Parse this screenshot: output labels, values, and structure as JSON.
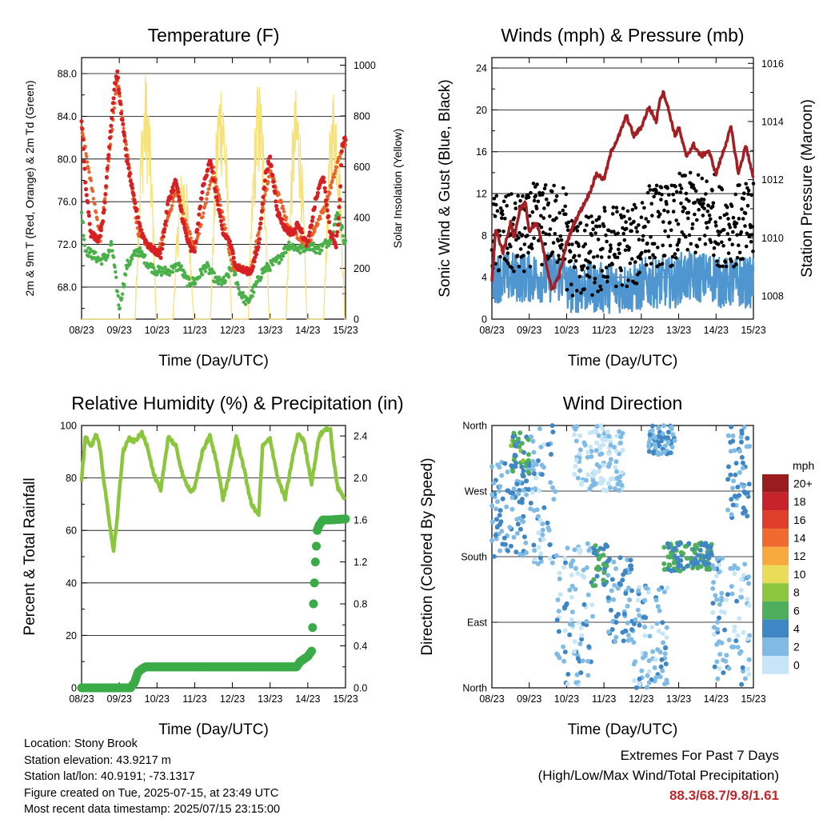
{
  "info": {
    "location": "Location: Stony Brook",
    "elevation": "Station elevation: 43.9217 m",
    "latlon": "Station lat/lon: 40.9191; -73.1317",
    "created": "Figure created on Tue, 2025-07-15, at 23:49 UTC",
    "timestamp": "Most recent data timestamp: 2025/07/15 23:15:00"
  },
  "extremes": {
    "title": "Extremes For Past 7 Days",
    "subtitle": "(High/Low/Max Wind/Total Precipitation)",
    "values": "88.3/68.7/9.8/1.61"
  },
  "colors": {
    "temp2m": "#d62024",
    "temp9m": "#e8652a",
    "dewpoint": "#4bb04a",
    "solar": "#f7e27a",
    "wind": "#4f96d0",
    "gust": "#000000",
    "pressure": "#a31f24",
    "rh": "#8cc63f",
    "precip": "#3aab46"
  },
  "chart_data": [
    {
      "type": "line",
      "title": "Temperature (F)",
      "xlabel": "Time (Day/UTC)",
      "ylabel": "2m & 9m T (Red, Orange) & 2m Td (Green)",
      "y2label": "Solar Insolation (Yellow)",
      "x_ticks": [
        "08/23",
        "09/23",
        "10/23",
        "11/23",
        "12/23",
        "13/23",
        "14/23",
        "15/23"
      ],
      "ylim": [
        65,
        89.5
      ],
      "y_ticks": [
        "68.0",
        "72.0",
        "76.0",
        "80.0",
        "84.0",
        "88.0"
      ],
      "y2lim": [
        0,
        1030
      ],
      "y2_ticks": [
        "0",
        "200",
        "400",
        "600",
        "800",
        "1000"
      ],
      "grid": "horizontal",
      "series": [
        {
          "key": "temp2m",
          "x": [
            0,
            0.1,
            0.25,
            0.45,
            0.6,
            0.7,
            0.8,
            0.88,
            0.95,
            1.0,
            1.2,
            1.4,
            1.6,
            1.75,
            1.9,
            2.1,
            2.3,
            2.5,
            2.7,
            2.8,
            2.9,
            3.0,
            3.2,
            3.4,
            3.6,
            3.75,
            3.9,
            4.1,
            4.3,
            4.5,
            4.7,
            4.8,
            4.9,
            5.0,
            5.2,
            5.4,
            5.6,
            5.75,
            5.9,
            6.0,
            6.2,
            6.4,
            6.6,
            6.75,
            6.85,
            6.9,
            7.0
          ],
          "y": [
            83.5,
            78,
            73,
            72.5,
            75,
            80,
            84,
            87,
            88,
            86,
            80,
            76,
            73,
            72,
            71.5,
            71,
            76,
            78,
            74,
            72.5,
            71.5,
            71.5,
            77,
            80,
            76,
            73,
            72.5,
            70,
            69.5,
            69.5,
            72,
            76,
            79,
            80,
            75,
            73.5,
            73,
            74,
            72.5,
            72,
            76,
            78.5,
            73,
            72,
            76,
            81,
            82
          ]
        },
        {
          "key": "temp9m",
          "x": [
            0,
            0.5,
            0.95,
            1.5,
            2.0,
            2.5,
            3.0,
            3.5,
            4.0,
            4.5,
            5.0,
            5.5,
            6.0,
            6.5,
            6.9,
            7.0
          ],
          "y": [
            83,
            72.5,
            87.5,
            73,
            71,
            77,
            71.5,
            79,
            70,
            69.5,
            79,
            73.5,
            72,
            76,
            81,
            81.5
          ]
        },
        {
          "key": "dewpoint",
          "x": [
            0,
            0.1,
            0.3,
            0.5,
            0.7,
            0.8,
            0.9,
            1.0,
            1.2,
            1.5,
            1.8,
            2.0,
            2.3,
            2.6,
            2.8,
            3.0,
            3.3,
            3.6,
            3.8,
            4.0,
            4.2,
            4.4,
            4.6,
            4.8,
            5.0,
            5.2,
            5.5,
            5.8,
            6.0,
            6.3,
            6.6,
            6.8,
            7.0
          ],
          "y": [
            75,
            71.5,
            71,
            70.5,
            71,
            72,
            69,
            66,
            70,
            71.5,
            70,
            69.5,
            69.5,
            70,
            68.5,
            68.5,
            70,
            68.5,
            68.5,
            70,
            67.5,
            66.5,
            68,
            69.5,
            70,
            70.5,
            72,
            71.5,
            72,
            71.5,
            72.5,
            75,
            72
          ]
        },
        {
          "key": "solar",
          "values_note": "daily peaks in W/m2",
          "days": [
            0,
            1,
            2,
            3,
            4,
            5,
            6
          ],
          "peak": [
            0,
            980,
            620,
            1000,
            960,
            920,
            950
          ]
        }
      ]
    },
    {
      "type": "scatter",
      "title": "Winds (mph) & Pressure (mb)",
      "xlabel": "Time (Day/UTC)",
      "ylabel": "Sonic Wind & Gust (Blue, Black)",
      "y2label": "Station Pressure (Maroon)",
      "x_ticks": [
        "08/23",
        "09/23",
        "10/23",
        "11/23",
        "12/23",
        "13/23",
        "14/23",
        "15/23"
      ],
      "ylim": [
        0,
        25
      ],
      "y_ticks": [
        "0",
        "4",
        "8",
        "12",
        "16",
        "20",
        "24"
      ],
      "y2lim": [
        1007.2,
        1016.2
      ],
      "y2_ticks": [
        "1008",
        "1010",
        "1012",
        "1014",
        "1016"
      ],
      "grid": "horizontal",
      "pressure": {
        "x": [
          0,
          0.1,
          0.3,
          0.5,
          0.6,
          0.75,
          0.9,
          1.0,
          1.2,
          1.4,
          1.6,
          1.8,
          2.0,
          2.2,
          2.4,
          2.6,
          2.8,
          3.0,
          3.2,
          3.4,
          3.6,
          3.8,
          4.0,
          4.2,
          4.4,
          4.5,
          4.6,
          4.75,
          4.9,
          5.0,
          5.2,
          5.4,
          5.6,
          5.8,
          6.0,
          6.2,
          6.4,
          6.6,
          6.8,
          7.0
        ],
        "y": [
          1008.5,
          1010.3,
          1009.5,
          1010.5,
          1010.0,
          1011.0,
          1011.2,
          1010.2,
          1010.5,
          1009.5,
          1008.2,
          1008.7,
          1009.8,
          1010.5,
          1011.0,
          1011.5,
          1012.2,
          1012.0,
          1013.0,
          1013.5,
          1014.2,
          1013.5,
          1013.8,
          1014.5,
          1014.0,
          1014.8,
          1015.0,
          1014.3,
          1013.5,
          1013.8,
          1012.8,
          1013.2,
          1012.8,
          1013.0,
          1012.2,
          1013.0,
          1013.8,
          1012.2,
          1013.2,
          1012.0
        ]
      },
      "wind_mean_by_day": [
        4,
        4,
        3,
        3,
        3.5,
        4,
        3.5
      ],
      "gust_mean_by_day": [
        8,
        9,
        6,
        7,
        9,
        10,
        9
      ]
    },
    {
      "type": "line",
      "title": "Relative Humidity (%) & Precipitation (in)",
      "xlabel": "Time (Day/UTC)",
      "ylabel": "Percent & Total Rainfall",
      "x_ticks": [
        "08/23",
        "09/23",
        "10/23",
        "11/23",
        "12/23",
        "13/23",
        "14/23",
        "15/23"
      ],
      "ylim": [
        0,
        100
      ],
      "y_ticks": [
        "0",
        "20",
        "40",
        "60",
        "80",
        "100"
      ],
      "y2lim": [
        0,
        2.5
      ],
      "y2_ticks": [
        "0.0",
        "0.4",
        "0.8",
        "1.2",
        "1.6",
        "2.0",
        "2.4"
      ],
      "grid": "horizontal",
      "series": [
        {
          "key": "rh",
          "x": [
            0,
            0.1,
            0.25,
            0.4,
            0.5,
            0.6,
            0.75,
            0.85,
            0.95,
            1.0,
            1.1,
            1.25,
            1.4,
            1.6,
            1.75,
            1.9,
            2.1,
            2.3,
            2.5,
            2.7,
            2.9,
            3.0,
            3.2,
            3.4,
            3.6,
            3.75,
            3.9,
            4.1,
            4.3,
            4.5,
            4.7,
            4.8,
            5.0,
            5.2,
            5.4,
            5.6,
            5.75,
            5.9,
            6.1,
            6.3,
            6.5,
            6.6,
            6.7,
            6.8,
            7.0
          ],
          "y": [
            79,
            96,
            92,
            97,
            90,
            78,
            62,
            52,
            65,
            75,
            90,
            95,
            94,
            97,
            92,
            82,
            75,
            96,
            92,
            80,
            75,
            76,
            90,
            96,
            85,
            72,
            80,
            96,
            84,
            70,
            66,
            92,
            95,
            80,
            72,
            88,
            97,
            94,
            78,
            96,
            99,
            98,
            85,
            76,
            72
          ]
        },
        {
          "key": "precip",
          "x": [
            0,
            1.3,
            1.4,
            1.5,
            1.6,
            1.7,
            2.0,
            3.0,
            4.0,
            5.0,
            5.7,
            5.8,
            6.0,
            6.1,
            6.15,
            6.2,
            6.25,
            6.3,
            6.4,
            6.6,
            7.0
          ],
          "y": [
            0,
            0,
            0.05,
            0.15,
            0.18,
            0.2,
            0.2,
            0.2,
            0.2,
            0.2,
            0.2,
            0.25,
            0.3,
            0.35,
            0.8,
            1.2,
            1.5,
            1.55,
            1.6,
            1.6,
            1.61
          ]
        }
      ]
    },
    {
      "type": "scatter",
      "title": "Wind Direction",
      "xlabel": "Time (Day/UTC)",
      "ylabel": "Direction (Colored By Speed)",
      "x_ticks": [
        "08/23",
        "09/23",
        "10/23",
        "11/23",
        "12/23",
        "13/23",
        "14/23",
        "15/23"
      ],
      "y_ticks": [
        "North",
        "East",
        "South",
        "West",
        "North"
      ],
      "ylim": [
        0,
        360
      ],
      "colorbar": {
        "title": "mph",
        "labels": [
          "20+",
          "18",
          "16",
          "14",
          "12",
          "10",
          "8",
          "6",
          "4",
          "2",
          "0"
        ],
        "colors": [
          "#9b1c1f",
          "#c7232a",
          "#e0402b",
          "#ef6a2e",
          "#f7a940",
          "#e9dc59",
          "#8cc63f",
          "#4fae5b",
          "#3f86c4",
          "#7fbbe4",
          "#c6e5f6"
        ]
      },
      "direction_clusters": [
        {
          "x0": 0.0,
          "x1": 1.0,
          "dir0": 180,
          "dir1": 310,
          "speed": 3
        },
        {
          "x0": 0.5,
          "x1": 1.0,
          "dir0": 290,
          "dir1": 350,
          "speed": 6
        },
        {
          "x0": 1.0,
          "x1": 1.7,
          "dir0": 170,
          "dir1": 360,
          "speed": 2
        },
        {
          "x0": 1.7,
          "x1": 2.7,
          "dir0": 0,
          "dir1": 200,
          "speed": 2
        },
        {
          "x0": 2.7,
          "x1": 3.1,
          "dir0": 140,
          "dir1": 200,
          "speed": 5
        },
        {
          "x0": 2.2,
          "x1": 3.5,
          "dir0": 270,
          "dir1": 360,
          "speed": 1
        },
        {
          "x0": 3.1,
          "x1": 3.8,
          "dir0": 60,
          "dir1": 180,
          "speed": 3
        },
        {
          "x0": 3.8,
          "x1": 4.7,
          "dir0": 0,
          "dir1": 140,
          "speed": 2
        },
        {
          "x0": 4.2,
          "x1": 4.9,
          "dir0": 320,
          "dir1": 360,
          "speed": 3
        },
        {
          "x0": 4.6,
          "x1": 5.9,
          "dir0": 160,
          "dir1": 200,
          "speed": 5
        },
        {
          "x0": 5.9,
          "x1": 6.9,
          "dir0": 0,
          "dir1": 180,
          "speed": 2
        },
        {
          "x0": 6.3,
          "x1": 6.9,
          "dir0": 230,
          "dir1": 360,
          "speed": 3
        }
      ]
    }
  ]
}
